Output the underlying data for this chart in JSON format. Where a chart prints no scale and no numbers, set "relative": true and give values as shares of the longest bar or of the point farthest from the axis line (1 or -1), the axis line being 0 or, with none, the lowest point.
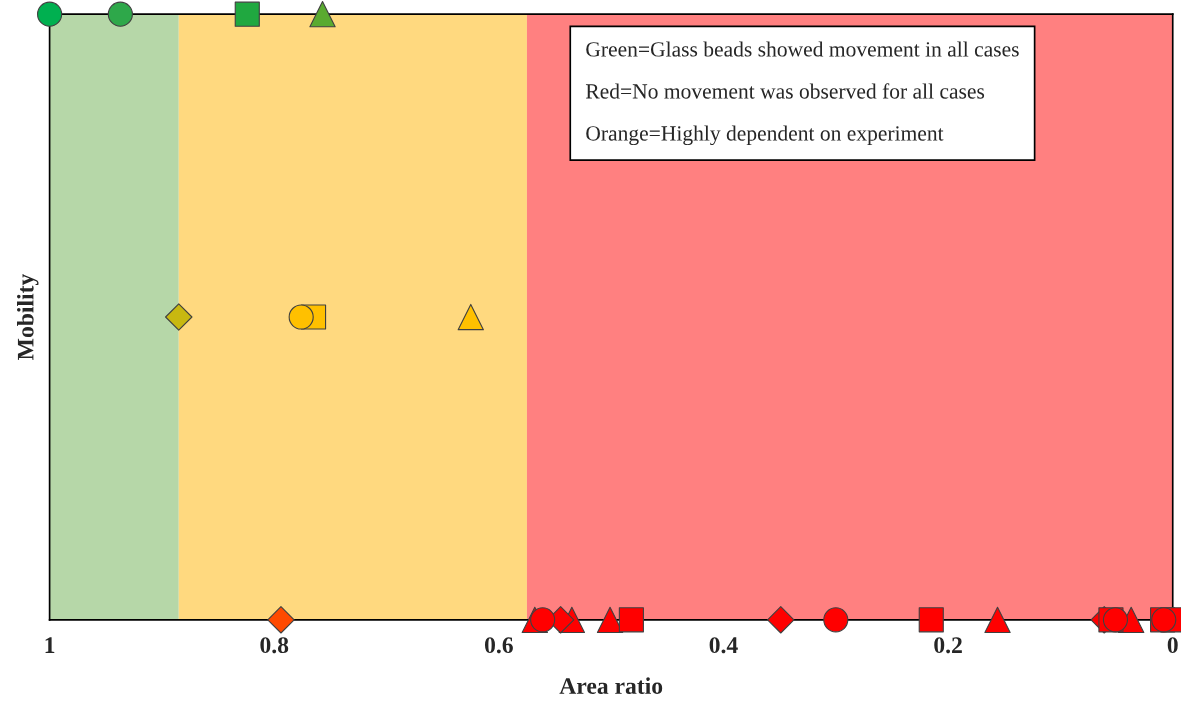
{
  "chart_data": {
    "type": "scatter",
    "xlabel": "Area ratio",
    "ylabel": "Mobility",
    "relative": true,
    "xlim": [
      1,
      0
    ],
    "xticks": [
      1,
      0.8,
      0.6,
      0.4,
      0.2,
      0
    ],
    "grid": false,
    "legend": false,
    "bands": [
      {
        "axis": "x",
        "from": 1,
        "to": 0.885,
        "color": "#b6d7a8"
      },
      {
        "axis": "x",
        "from": 0.885,
        "to": 0.575,
        "color": "#ffd97f"
      },
      {
        "axis": "x",
        "from": 0.575,
        "to": 0,
        "color": "#ff8080"
      }
    ],
    "annotations": [
      "Green=Glass beads showed movement in all cases",
      "Red=No movement was observed for all cases",
      "Orange=Highly dependent on experiment"
    ],
    "series": [
      {
        "marker": "triangle",
        "x": [
          0.757,
          0.625,
          0.568,
          0.535,
          0.501,
          0.156,
          0.037
        ],
        "values": [
          1,
          0.5,
          0,
          0,
          0,
          0,
          0
        ],
        "colors": [
          "#5aaa30",
          "#ffc000",
          "#ff0000",
          "#ff0000",
          "#ff0000",
          "#ff0000",
          "#ff0000"
        ]
      },
      {
        "marker": "diamond",
        "x": [
          0.885,
          0.794,
          0.545,
          0.349,
          0.061
        ],
        "values": [
          0.5,
          0,
          0,
          0,
          0
        ],
        "colors": [
          "#c8b810",
          "#ff4a00",
          "#ff0000",
          "#ff0000",
          "#ff0000"
        ]
      },
      {
        "marker": "square",
        "x": [
          0.824,
          0.765,
          0.482,
          0.215,
          0.055,
          0.009,
          0
        ],
        "values": [
          1,
          0.5,
          0,
          0,
          0,
          0,
          0
        ],
        "colors": [
          "#20a840",
          "#ffc000",
          "#ff0000",
          "#ff0000",
          "#ff0000",
          "#ff0000",
          "#ff0000"
        ]
      },
      {
        "marker": "circle",
        "x": [
          1,
          0.937,
          0.776,
          0.561,
          0.3,
          0.051,
          0.008
        ],
        "values": [
          1,
          1,
          0.5,
          0,
          0,
          0,
          0
        ],
        "colors": [
          "#00b050",
          "#2ea84a",
          "#ffc000",
          "#ff0000",
          "#ff0000",
          "#ff0000",
          "#ff0000"
        ]
      }
    ]
  }
}
